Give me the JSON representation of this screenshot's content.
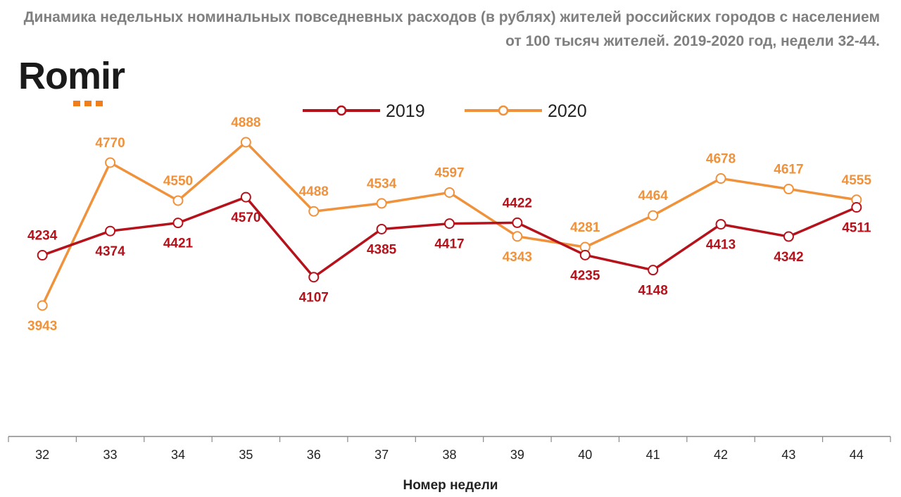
{
  "page": {
    "title": "Динамика недельных номинальных повседневных расходов (в рублях) жителей российских городов с населением от 100 тысяч жителей. 2019-2020 год, недели 32-44.",
    "logo_text": "Romir"
  },
  "colors": {
    "series_2019": "#b5121b",
    "series_2020": "#f0923b",
    "title": "#7f7f7f",
    "logo_dots": "#f07f1b"
  },
  "chart_data": {
    "type": "line",
    "title": "Динамика недельных номинальных повседневных расходов (в рублях) жителей российских городов с населением от 100 тысяч жителей. 2019-2020 год, недели 32-44.",
    "xlabel": "Номер недели",
    "ylabel": "",
    "categories": [
      "32",
      "33",
      "34",
      "35",
      "36",
      "37",
      "38",
      "39",
      "40",
      "41",
      "42",
      "43",
      "44"
    ],
    "series": [
      {
        "name": "2019",
        "values": [
          4234,
          4374,
          4421,
          4570,
          4107,
          4385,
          4417,
          4422,
          4235,
          4148,
          4413,
          4342,
          4511
        ]
      },
      {
        "name": "2020",
        "values": [
          3943,
          4770,
          4550,
          4888,
          4488,
          4534,
          4597,
          4343,
          4281,
          4464,
          4678,
          4617,
          4555
        ]
      }
    ],
    "legend": "top-center",
    "grid": false
  }
}
